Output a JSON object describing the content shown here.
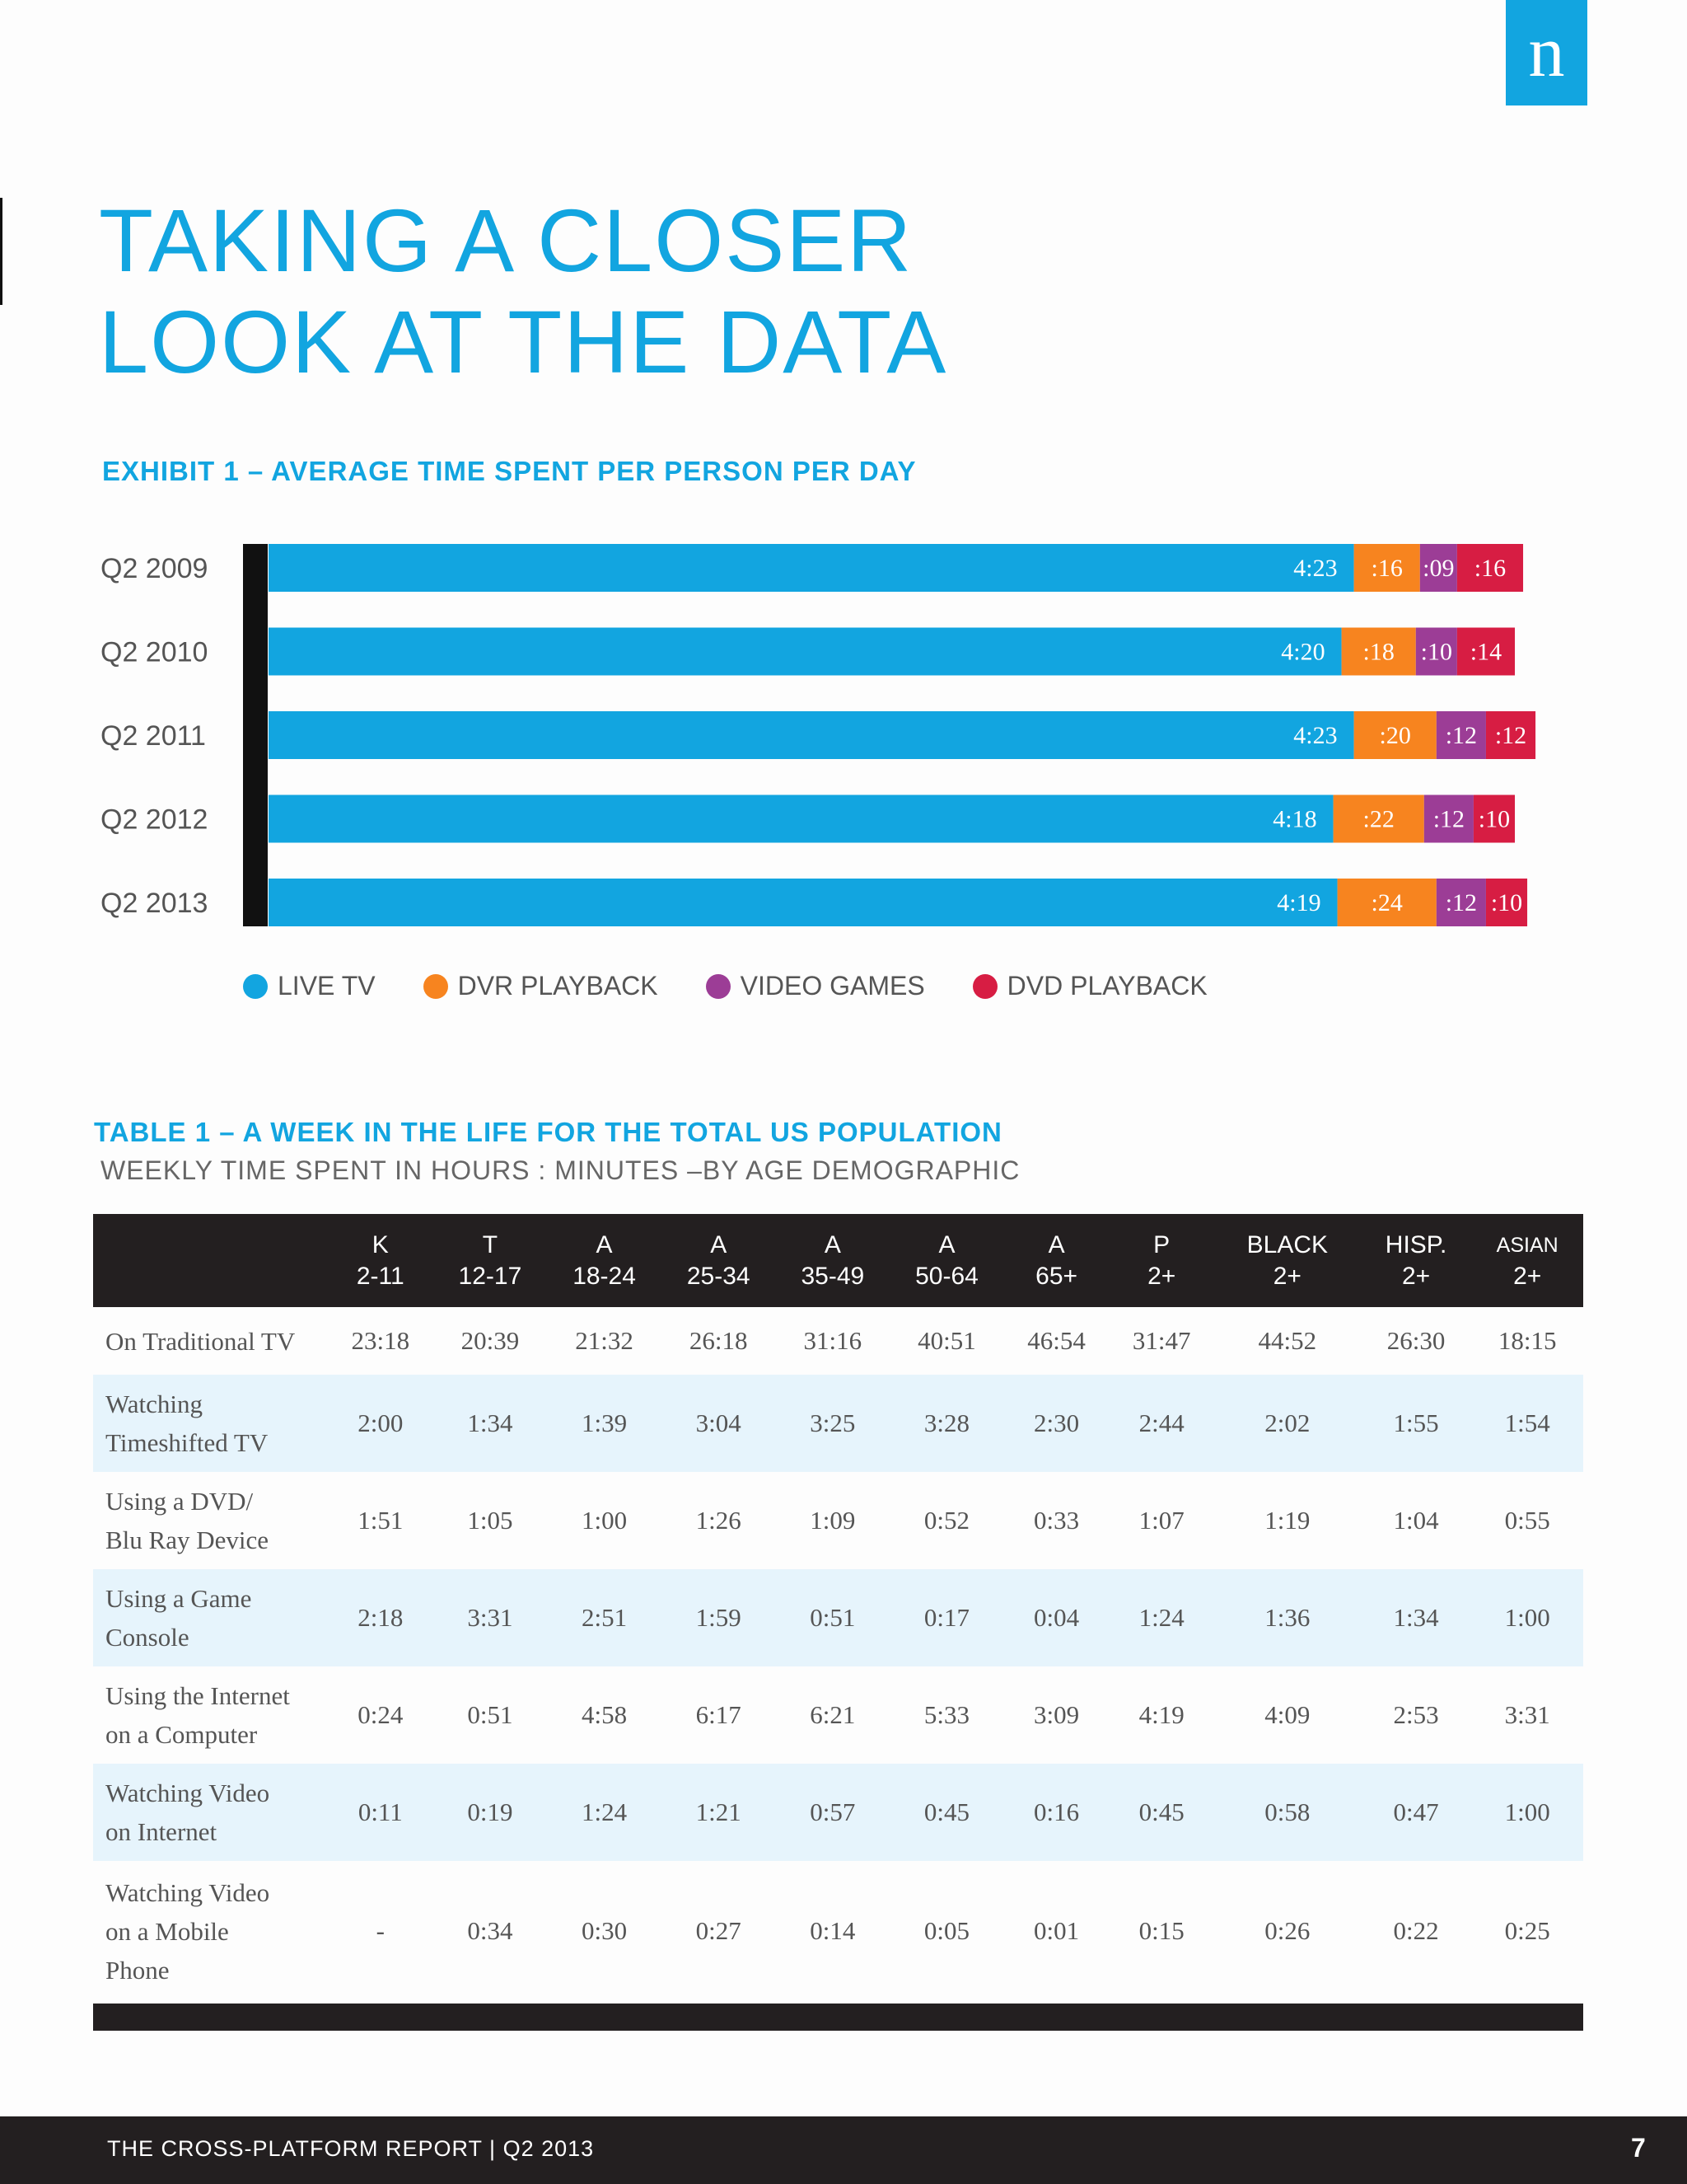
{
  "logo": "n",
  "title": {
    "line1": "TAKING A CLOSER",
    "line2": "LOOK AT THE DATA"
  },
  "exhibit_title": "EXHIBIT 1 – AVERAGE TIME SPENT PER PERSON PER DAY",
  "colors": {
    "live_tv": "#12a5e0",
    "dvr": "#f7841f",
    "games": "#9c3d96",
    "dvd": "#d71d43"
  },
  "chart_data": {
    "type": "bar",
    "orientation": "horizontal",
    "stacked": true,
    "categories": [
      "Q2 2009",
      "Q2 2010",
      "Q2 2011",
      "Q2 2012",
      "Q2 2013"
    ],
    "series": [
      {
        "name": "LIVE TV",
        "values": [
          263,
          260,
          263,
          258,
          259
        ],
        "labels": [
          "4:23",
          "4:20",
          "4:23",
          "4:18",
          "4:19"
        ]
      },
      {
        "name": "DVR PLAYBACK",
        "values": [
          16,
          18,
          20,
          22,
          24
        ],
        "labels": [
          ":16",
          ":18",
          ":20",
          ":22",
          ":24"
        ]
      },
      {
        "name": "VIDEO GAMES",
        "values": [
          9,
          10,
          12,
          12,
          12
        ],
        "labels": [
          ":09",
          ":10",
          ":12",
          ":12",
          ":12"
        ]
      },
      {
        "name": "DVD PLAYBACK",
        "values": [
          16,
          14,
          12,
          10,
          10
        ],
        "labels": [
          ":16",
          ":14",
          ":12",
          ":10",
          ":10"
        ]
      }
    ],
    "value_unit": "minutes",
    "legend_position": "bottom"
  },
  "table": {
    "title": "TABLE 1 – A WEEK IN THE LIFE FOR THE TOTAL US POPULATION",
    "subtitle": "WEEKLY TIME SPENT IN HOURS : MINUTES –BY AGE DEMOGRAPHIC",
    "columns": [
      {
        "top": "K",
        "bottom": "2-11"
      },
      {
        "top": "T",
        "bottom": "12-17"
      },
      {
        "top": "A",
        "bottom": "18-24"
      },
      {
        "top": "A",
        "bottom": "25-34"
      },
      {
        "top": "A",
        "bottom": "35-49"
      },
      {
        "top": "A",
        "bottom": "50-64"
      },
      {
        "top": "A",
        "bottom": "65+"
      },
      {
        "top": "P",
        "bottom": "2+"
      },
      {
        "top": "BLACK",
        "bottom": "2+"
      },
      {
        "top": "HISP.",
        "bottom": "2+"
      },
      {
        "top": "ASIAN",
        "bottom": "2+"
      }
    ],
    "rows": [
      {
        "label": [
          "On Traditional TV"
        ],
        "values": [
          "23:18",
          "20:39",
          "21:32",
          "26:18",
          "31:16",
          "40:51",
          "46:54",
          "31:47",
          "44:52",
          "26:30",
          "18:15"
        ]
      },
      {
        "label": [
          "Watching",
          "Timeshifted TV"
        ],
        "values": [
          "2:00",
          "1:34",
          "1:39",
          "3:04",
          "3:25",
          "3:28",
          "2:30",
          "2:44",
          "2:02",
          "1:55",
          "1:54"
        ]
      },
      {
        "label": [
          "Using a DVD/",
          "Blu Ray Device"
        ],
        "values": [
          "1:51",
          "1:05",
          "1:00",
          "1:26",
          "1:09",
          "0:52",
          "0:33",
          "1:07",
          "1:19",
          "1:04",
          "0:55"
        ]
      },
      {
        "label": [
          "Using a Game",
          "Console"
        ],
        "values": [
          "2:18",
          "3:31",
          "2:51",
          "1:59",
          "0:51",
          "0:17",
          "0:04",
          "1:24",
          "1:36",
          "1:34",
          "1:00"
        ]
      },
      {
        "label": [
          "Using the Internet",
          "on a Computer"
        ],
        "values": [
          "0:24",
          "0:51",
          "4:58",
          "6:17",
          "6:21",
          "5:33",
          "3:09",
          "4:19",
          "4:09",
          "2:53",
          "3:31"
        ]
      },
      {
        "label": [
          "Watching Video",
          "on Internet"
        ],
        "values": [
          "0:11",
          "0:19",
          "1:24",
          "1:21",
          "0:57",
          "0:45",
          "0:16",
          "0:45",
          "0:58",
          "0:47",
          "1:00"
        ]
      },
      {
        "label": [
          "Watching Video",
          "on a Mobile",
          "Phone"
        ],
        "values": [
          "-",
          "0:34",
          "0:30",
          "0:27",
          "0:14",
          "0:05",
          "0:01",
          "0:15",
          "0:26",
          "0:22",
          "0:25"
        ]
      }
    ]
  },
  "footer": {
    "text": "THE CROSS-PLATFORM REPORT | Q2 2013",
    "page": "7"
  }
}
